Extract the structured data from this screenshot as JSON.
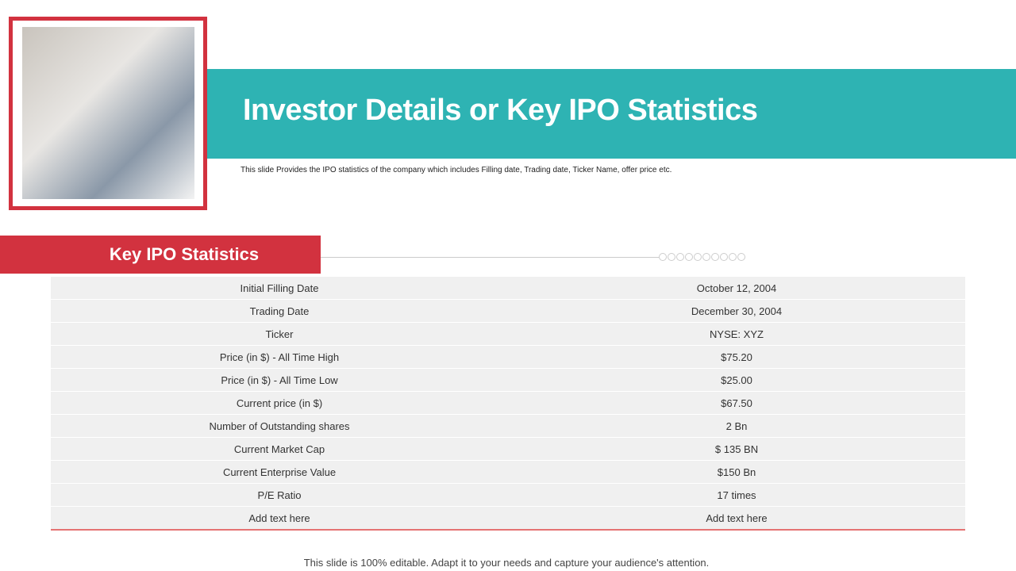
{
  "header": {
    "title": "Investor Details or Key IPO Statistics",
    "subtitle": "This slide Provides the IPO  statistics of the company which includes Filling date, Trading date, Ticker Name, offer price etc."
  },
  "section": {
    "title": "Key IPO Statistics"
  },
  "table": {
    "rows": [
      [
        "Initial Filling Date",
        "October 12, 2004"
      ],
      [
        "Trading Date",
        "December 30, 2004"
      ],
      [
        "Ticker",
        "NYSE: XYZ"
      ],
      [
        "Price (in $) - All Time High",
        "$75.20"
      ],
      [
        "Price (in $) - All Time Low",
        "$25.00"
      ],
      [
        "Current price (in $)",
        "$67.50"
      ],
      [
        "Number of Outstanding shares",
        "2 Bn"
      ],
      [
        "Current Market Cap",
        "$ 135 BN"
      ],
      [
        "Current Enterprise Value",
        "$150 Bn"
      ],
      [
        "P/E Ratio",
        "17 times"
      ],
      [
        "Add text here",
        "Add text here"
      ]
    ]
  },
  "footer": {
    "text": "This slide is 100% editable. Adapt it to your needs and capture your audience's attention."
  }
}
